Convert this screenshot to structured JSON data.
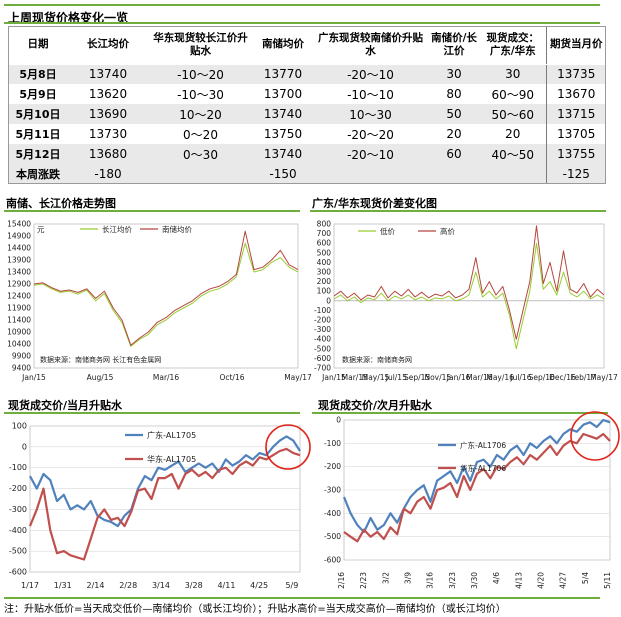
{
  "table": {
    "title": "上周现货价格变化一览",
    "headers": [
      "日期",
      "长江均价",
      "华东现货较长江价升贴水",
      "南储均价",
      "广东现货较南储价升贴水",
      "南储价/长江价",
      "现货成交：广东/华东",
      "期货当月价"
    ],
    "rows": [
      [
        "5月8日",
        "13740",
        "-10～20",
        "13770",
        "-20～10",
        "30",
        "30",
        "13735"
      ],
      [
        "5月9日",
        "13620",
        "-10～30",
        "13700",
        "-10～10",
        "80",
        "60～90",
        "13670"
      ],
      [
        "5月10日",
        "13690",
        "10～20",
        "13740",
        "10～30",
        "50",
        "50～60",
        "13715"
      ],
      [
        "5月11日",
        "13730",
        "0～20",
        "13750",
        "-20～20",
        "20",
        "20",
        "13705"
      ],
      [
        "5月12日",
        "13680",
        "0～30",
        "13740",
        "-20～10",
        "60",
        "40～50",
        "13755"
      ]
    ],
    "summary": {
      "label": "本周涨跌",
      "cjs": "-180",
      "nc": "-150",
      "fut": "-125"
    }
  },
  "footnote": "注：升贴水低价=当天成交低价—南储均价（或长江均价）；升贴水高价=当天成交高价—南储均价（或长江均价）",
  "chart_data": [
    {
      "id": "c1",
      "type": "line",
      "title": "南储、长江价格走势图",
      "unit": "元",
      "ylim": [
        9400,
        15400
      ],
      "yticks": [
        9400,
        9900,
        10400,
        10900,
        11400,
        11900,
        12400,
        12900,
        13400,
        13900,
        14400,
        14900,
        15400
      ],
      "xticks": [
        "Jan/15",
        "Aug/15",
        "Mar/16",
        "Oct/16",
        "May/17"
      ],
      "legend": [
        "长江均价",
        "南储均价"
      ],
      "source": "数据来源：南储商务网 长江有色金属网",
      "colors": [
        "#99cc33",
        "#b5463d"
      ],
      "x": [
        0,
        4,
        8,
        12,
        16,
        20,
        24,
        28,
        32,
        36,
        40,
        44,
        48,
        52,
        56,
        60,
        64,
        68,
        72,
        76,
        80,
        84,
        88,
        92,
        96,
        100,
        104,
        108,
        112,
        116,
        120
      ],
      "series": [
        {
          "name": "长江均价",
          "values": [
            12850,
            12900,
            12700,
            12550,
            12600,
            12480,
            12650,
            12200,
            12500,
            11800,
            11300,
            10300,
            10600,
            10800,
            11200,
            11400,
            11700,
            11900,
            12100,
            12400,
            12600,
            12700,
            12900,
            13200,
            14600,
            13400,
            13500,
            13800,
            14000,
            13600,
            13400
          ]
        },
        {
          "name": "南储均价",
          "values": [
            12900,
            12950,
            12750,
            12600,
            12650,
            12550,
            12700,
            12300,
            12600,
            11900,
            11400,
            10350,
            10650,
            10900,
            11300,
            11500,
            11800,
            12000,
            12200,
            12500,
            12700,
            12800,
            13000,
            13300,
            15100,
            13500,
            13600,
            13900,
            14300,
            13700,
            13500
          ]
        }
      ]
    },
    {
      "id": "c2",
      "type": "line",
      "title": "广东/华东现货价差变化图",
      "ylim": [
        -700,
        800
      ],
      "yticks": [
        -700,
        -600,
        -500,
        -400,
        -300,
        -200,
        -100,
        0,
        100,
        200,
        300,
        400,
        500,
        600,
        700,
        800
      ],
      "xticks": [
        "Jan/15",
        "Mar/15",
        "May/15",
        "Jul/15",
        "Sep/15",
        "Nov/15",
        "Jan/16",
        "Mar/16",
        "May/16",
        "Jul/16",
        "Sep/16",
        "Dec/16",
        "Feb/17",
        "May/17"
      ],
      "legend": [
        "低价",
        "高价"
      ],
      "source": "数据来源：南储商务网",
      "colors": [
        "#99cc33",
        "#b5463d"
      ],
      "x": [
        0,
        3,
        6,
        9,
        12,
        15,
        18,
        21,
        24,
        27,
        30,
        33,
        36,
        39,
        42,
        45,
        48,
        51,
        54,
        57,
        60,
        63,
        66,
        69,
        72,
        75,
        78,
        81,
        84,
        87,
        90,
        93,
        96,
        99,
        102,
        105,
        108,
        111,
        114,
        117,
        120
      ],
      "series": [
        {
          "name": "低价",
          "values": [
            20,
            60,
            0,
            40,
            -20,
            30,
            10,
            80,
            0,
            50,
            20,
            60,
            10,
            40,
            0,
            30,
            20,
            50,
            0,
            20,
            60,
            300,
            40,
            100,
            20,
            80,
            -150,
            -500,
            -200,
            100,
            600,
            120,
            200,
            60,
            300,
            80,
            40,
            100,
            20,
            60,
            20
          ]
        },
        {
          "name": "高价",
          "values": [
            50,
            100,
            30,
            80,
            10,
            60,
            40,
            150,
            30,
            100,
            50,
            120,
            40,
            90,
            30,
            70,
            50,
            100,
            30,
            60,
            120,
            450,
            80,
            200,
            60,
            150,
            -100,
            -400,
            -100,
            200,
            780,
            180,
            400,
            100,
            520,
            120,
            80,
            180,
            40,
            120,
            60
          ]
        }
      ]
    },
    {
      "id": "c3",
      "type": "line",
      "title": "现货成交价/当月升贴水",
      "ylim": [
        -600,
        100
      ],
      "yticks": [
        -600,
        -500,
        -400,
        -300,
        -200,
        -100,
        0,
        100
      ],
      "xticks": [
        "1/17",
        "1/31",
        "2/14",
        "2/28",
        "3/14",
        "3/28",
        "4/11",
        "4/25",
        "5/9"
      ],
      "legend": [
        "广东-AL1705",
        "华东-AL1705"
      ],
      "colors": [
        "#4f81bd",
        "#c0504d"
      ],
      "x": [
        0,
        3,
        6,
        9,
        12,
        15,
        18,
        21,
        24,
        27,
        30,
        33,
        36,
        39,
        42,
        45,
        48,
        51,
        54,
        57,
        60,
        63,
        66,
        69,
        72,
        75,
        78,
        81,
        84,
        87,
        90,
        93,
        96,
        99,
        102,
        105,
        108,
        111,
        114,
        117,
        120
      ],
      "series": [
        {
          "name": "广东-AL1705",
          "values": [
            -140,
            -200,
            -130,
            -160,
            -260,
            -230,
            -300,
            -280,
            -300,
            -260,
            -330,
            -350,
            -360,
            -380,
            -330,
            -300,
            -200,
            -140,
            -160,
            -100,
            -110,
            -90,
            -70,
            -120,
            -100,
            -80,
            -100,
            -80,
            -120,
            -60,
            -90,
            -70,
            -40,
            -60,
            -30,
            -40,
            0,
            30,
            50,
            30,
            -20
          ]
        },
        {
          "name": "华东-AL1705",
          "values": [
            -380,
            -300,
            -200,
            -400,
            -510,
            -500,
            -520,
            -530,
            -540,
            -440,
            -340,
            -300,
            -350,
            -340,
            -380,
            -310,
            -210,
            -200,
            -250,
            -150,
            -150,
            -130,
            -200,
            -130,
            -110,
            -140,
            -120,
            -150,
            -110,
            -100,
            -130,
            -90,
            -70,
            -90,
            -50,
            -60,
            -40,
            -20,
            -10,
            -30,
            -40
          ]
        }
      ]
    },
    {
      "id": "c4",
      "type": "line",
      "title": "现货成交价/次月升贴水",
      "ylim": [
        -600,
        0
      ],
      "yticks": [
        -600,
        -500,
        -400,
        -300,
        -200,
        -100,
        0
      ],
      "xticks": [
        "2/16",
        "2/23",
        "3/2",
        "3/9",
        "3/16",
        "3/23",
        "3/30",
        "4/6",
        "4/13",
        "4/20",
        "4/27",
        "5/4",
        "5/11"
      ],
      "legend": [
        "广东-AL1706",
        "华东-AL1706"
      ],
      "colors": [
        "#4f81bd",
        "#c0504d"
      ],
      "x": [
        0,
        3,
        6,
        9,
        12,
        15,
        18,
        21,
        24,
        27,
        30,
        33,
        36,
        39,
        42,
        45,
        48,
        51,
        54,
        57,
        60,
        63,
        66,
        69,
        72,
        75,
        78,
        81,
        84,
        87,
        90,
        93,
        96,
        99,
        102,
        105,
        108,
        111,
        114,
        117,
        120
      ],
      "series": [
        {
          "name": "广东-AL1706",
          "values": [
            -330,
            -400,
            -450,
            -480,
            -420,
            -470,
            -450,
            -400,
            -440,
            -380,
            -330,
            -300,
            -280,
            -350,
            -260,
            -240,
            -220,
            -270,
            -200,
            -260,
            -180,
            -170,
            -200,
            -150,
            -170,
            -130,
            -110,
            -150,
            -100,
            -120,
            -90,
            -70,
            -100,
            -60,
            -40,
            -50,
            -20,
            -10,
            -30,
            0,
            -10
          ]
        },
        {
          "name": "华东-AL1706",
          "values": [
            -480,
            -500,
            -520,
            -470,
            -500,
            -480,
            -510,
            -460,
            -490,
            -380,
            -400,
            -350,
            -330,
            -380,
            -300,
            -290,
            -270,
            -330,
            -240,
            -300,
            -230,
            -210,
            -250,
            -200,
            -210,
            -180,
            -160,
            -190,
            -150,
            -170,
            -140,
            -110,
            -150,
            -110,
            -90,
            -100,
            -60,
            -70,
            -80,
            -60,
            -90
          ]
        }
      ]
    }
  ]
}
